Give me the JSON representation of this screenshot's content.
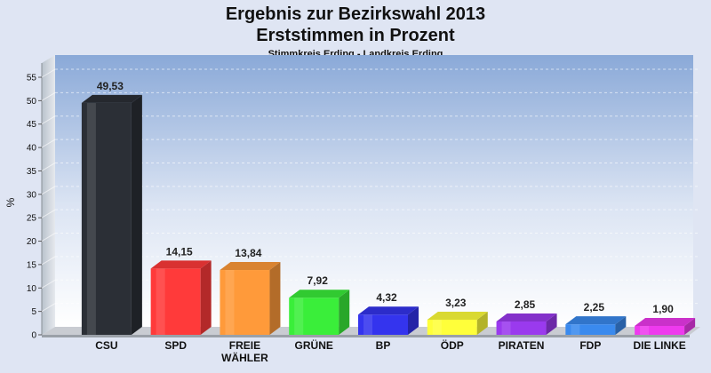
{
  "chart_data": {
    "type": "bar",
    "title": "Ergebnis zur Bezirkswahl 2013",
    "subtitle": "Erststimmen in Prozent",
    "subsubtitle": "Stimmkreis Erding - Landkreis Erding",
    "ylabel": "%",
    "ylim": [
      0,
      55
    ],
    "yticks": [
      0,
      5,
      10,
      15,
      20,
      25,
      30,
      35,
      40,
      45,
      50,
      55
    ],
    "categories": [
      "CSU",
      "SPD",
      "FREIE WÄHLER",
      "GRÜNE",
      "BP",
      "ÖDP",
      "PIRATEN",
      "FDP",
      "DIE LINKE"
    ],
    "category_lines": [
      [
        "CSU"
      ],
      [
        "SPD"
      ],
      [
        "FREIE",
        "WÄHLER"
      ],
      [
        "GRÜNE"
      ],
      [
        "BP"
      ],
      [
        "ÖDP"
      ],
      [
        "PIRATEN"
      ],
      [
        "FDP"
      ],
      [
        "DIE LINKE"
      ]
    ],
    "values": [
      49.53,
      14.15,
      13.84,
      7.92,
      4.32,
      3.23,
      2.85,
      2.25,
      1.9
    ],
    "value_labels": [
      "49,53",
      "14,15",
      "13,84",
      "7,92",
      "4,32",
      "3,23",
      "2,85",
      "2,25",
      "1,90"
    ],
    "colors": [
      "#2b2f36",
      "#ff3a3a",
      "#ff9a3a",
      "#3aee3a",
      "#3434ee",
      "#ffff3a",
      "#9a3aee",
      "#3a8aee",
      "#ee3aee"
    ],
    "grid": true,
    "legend": "none"
  }
}
